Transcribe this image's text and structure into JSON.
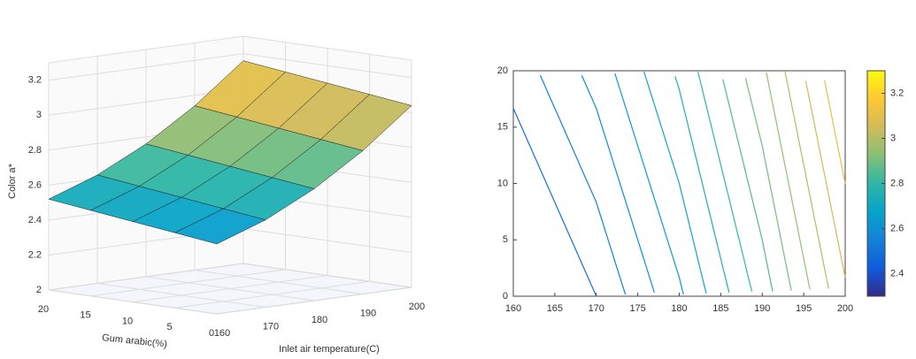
{
  "chart_data": [
    {
      "type": "surface3d",
      "zlabel": "Color a*",
      "ylabel": "Gum arabic(%)",
      "xlabel": "Inlet air temperature(C)",
      "x": [
        160,
        170,
        180,
        190,
        200
      ],
      "y": [
        0,
        5,
        10,
        15,
        20
      ],
      "z": [
        [
          2.4,
          2.5,
          2.64,
          2.82,
          3.04
        ],
        [
          2.43,
          2.53,
          2.67,
          2.85,
          3.07
        ],
        [
          2.46,
          2.56,
          2.7,
          2.88,
          3.1
        ],
        [
          2.49,
          2.59,
          2.73,
          2.91,
          3.13
        ],
        [
          2.52,
          2.62,
          2.76,
          2.94,
          3.16
        ]
      ],
      "xlim": [
        160,
        200
      ],
      "ylim": [
        0,
        20
      ],
      "zlim": [
        2,
        3.3
      ],
      "xticks": [
        160,
        170,
        180,
        190,
        200
      ],
      "yticks": [
        0,
        5,
        10,
        15,
        20
      ],
      "zticks": [
        2,
        2.2,
        2.4,
        2.6,
        2.8,
        3,
        3.2
      ],
      "grid": true
    },
    {
      "type": "contour",
      "x": [
        160,
        170,
        180,
        190,
        200
      ],
      "y": [
        0,
        5,
        10,
        15,
        20
      ],
      "z": [
        [
          2.4,
          2.5,
          2.64,
          2.82,
          3.04
        ],
        [
          2.43,
          2.53,
          2.67,
          2.85,
          3.07
        ],
        [
          2.46,
          2.56,
          2.7,
          2.88,
          3.1
        ],
        [
          2.49,
          2.59,
          2.73,
          2.91,
          3.13
        ],
        [
          2.52,
          2.62,
          2.76,
          2.94,
          3.16
        ]
      ],
      "levels": [
        2.5,
        2.55,
        2.6,
        2.65,
        2.7,
        2.75,
        2.8,
        2.85,
        2.9,
        2.95,
        3.0,
        3.05,
        3.1
      ],
      "xlim": [
        160,
        200
      ],
      "ylim": [
        0,
        20
      ],
      "xticks": [
        160,
        165,
        170,
        175,
        180,
        185,
        190,
        195,
        200
      ],
      "yticks": [
        0,
        5,
        10,
        15,
        20
      ],
      "clim": [
        2.3,
        3.3
      ],
      "cticks": [
        2.4,
        2.6,
        2.8,
        3,
        3.2
      ]
    }
  ]
}
